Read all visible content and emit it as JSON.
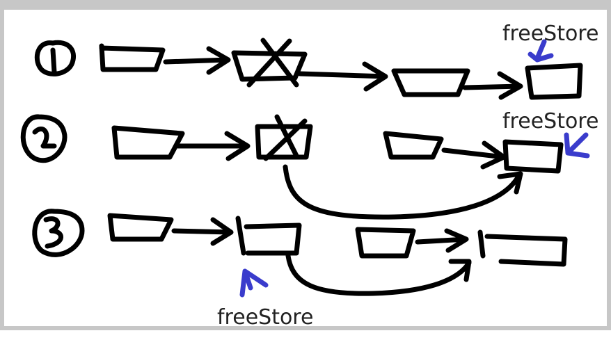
{
  "diagram": {
    "steps": [
      {
        "number": "1"
      },
      {
        "number": "2"
      },
      {
        "number": "3"
      }
    ],
    "pointer_labels": [
      "freeStore",
      "freeStore",
      "freeStore"
    ],
    "colors": {
      "ink": "#000000",
      "pointer": "#3a3ccc",
      "frame": "#c7c7c7"
    }
  }
}
